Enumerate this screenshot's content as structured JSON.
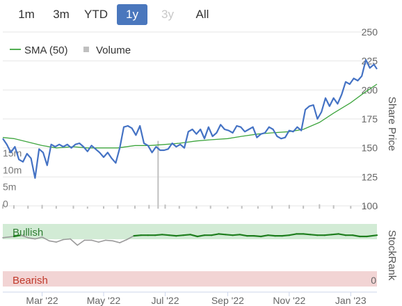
{
  "range_selector": {
    "buttons": [
      {
        "label": "1m",
        "state": "normal"
      },
      {
        "label": "3m",
        "state": "normal"
      },
      {
        "label": "YTD",
        "state": "normal"
      },
      {
        "label": "1y",
        "state": "active"
      },
      {
        "label": "3y",
        "state": "disabled"
      },
      {
        "label": "All",
        "state": "normal"
      }
    ]
  },
  "colors": {
    "price": "#4472c4",
    "sma": "#3ea53e",
    "volume": "#c0c0c0",
    "stockrank_line": "#9a9a9a",
    "stockrank_bullish": "#1e7e1e",
    "bullish_band": "#d2ebd5",
    "bearish_band": "#f2d4d4",
    "bullish_text": "#2e7d32",
    "bearish_text": "#c0392b",
    "active_button": "#4a77bd"
  },
  "chart_data": [
    {
      "type": "line",
      "ylabel": "Share Price",
      "ylim": [
        100,
        250
      ],
      "y_ticks": [
        "250",
        "225",
        "200",
        "175",
        "150",
        "125",
        "100"
      ],
      "volume_ticks": [
        "15m",
        "10m",
        "5m",
        "0"
      ],
      "volume_max": 23000000,
      "x_labels": [
        "Mar '22",
        "May '22",
        "Jul '22",
        "Sep '22",
        "Nov '22",
        "Jan '23"
      ],
      "x_label_dates": [
        "2022-03-01",
        "2022-05-01",
        "2022-07-01",
        "2022-09-01",
        "2022-11-01",
        "2023-01-01"
      ],
      "x_range": [
        "2022-01-21",
        "2023-01-27"
      ],
      "legend": [
        {
          "name": "SMA (50)",
          "marker": "line"
        },
        {
          "name": "Volume",
          "marker": "square"
        }
      ],
      "legend_position": "top-left",
      "series": [
        {
          "name": "Price",
          "x": [
            "2022-01-21",
            "2022-01-25",
            "2022-01-29",
            "2022-02-02",
            "2022-02-06",
            "2022-02-10",
            "2022-02-14",
            "2022-02-18",
            "2022-02-22",
            "2022-02-26",
            "2022-03-02",
            "2022-03-06",
            "2022-03-10",
            "2022-03-14",
            "2022-03-18",
            "2022-03-22",
            "2022-03-26",
            "2022-03-30",
            "2022-04-03",
            "2022-04-07",
            "2022-04-11",
            "2022-04-15",
            "2022-04-19",
            "2022-04-23",
            "2022-04-27",
            "2022-05-01",
            "2022-05-05",
            "2022-05-09",
            "2022-05-13",
            "2022-05-17",
            "2022-05-21",
            "2022-05-25",
            "2022-05-29",
            "2022-06-02",
            "2022-06-06",
            "2022-06-10",
            "2022-06-14",
            "2022-06-18",
            "2022-06-22",
            "2022-06-26",
            "2022-06-30",
            "2022-07-04",
            "2022-07-08",
            "2022-07-12",
            "2022-07-16",
            "2022-07-20",
            "2022-07-24",
            "2022-07-28",
            "2022-08-01",
            "2022-08-05",
            "2022-08-09",
            "2022-08-13",
            "2022-08-17",
            "2022-08-21",
            "2022-08-25",
            "2022-08-29",
            "2022-09-02",
            "2022-09-06",
            "2022-09-10",
            "2022-09-14",
            "2022-09-18",
            "2022-09-22",
            "2022-09-26",
            "2022-09-30",
            "2022-10-04",
            "2022-10-08",
            "2022-10-12",
            "2022-10-16",
            "2022-10-20",
            "2022-10-24",
            "2022-10-28",
            "2022-11-01",
            "2022-11-05",
            "2022-11-09",
            "2022-11-13",
            "2022-11-17",
            "2022-11-21",
            "2022-11-25",
            "2022-11-29",
            "2022-12-03",
            "2022-12-07",
            "2022-12-11",
            "2022-12-15",
            "2022-12-19",
            "2022-12-23",
            "2022-12-27",
            "2022-12-31",
            "2023-01-04",
            "2023-01-08",
            "2023-01-12",
            "2023-01-16",
            "2023-01-20",
            "2023-01-24",
            "2023-01-27"
          ],
          "y": [
            158,
            153,
            146,
            151,
            140,
            138,
            145,
            141,
            124,
            149,
            146,
            135,
            153,
            151,
            153,
            151,
            153,
            150,
            153,
            154,
            151,
            147,
            152,
            149,
            146,
            142,
            146,
            141,
            137,
            150,
            168,
            169,
            167,
            161,
            169,
            154,
            152,
            146,
            151,
            148,
            148,
            149,
            154,
            151,
            153,
            150,
            164,
            166,
            162,
            166,
            158,
            168,
            160,
            163,
            170,
            166,
            165,
            163,
            169,
            168,
            164,
            166,
            168,
            159,
            162,
            163,
            168,
            166,
            160,
            158,
            159,
            165,
            164,
            168,
            165,
            183,
            186,
            187,
            175,
            181,
            193,
            186,
            193,
            188,
            196,
            207,
            205,
            210,
            208,
            212,
            226,
            219,
            222,
            218
          ]
        },
        {
          "name": "SMA (50)",
          "x": [
            "2022-01-21",
            "2022-02-01",
            "2022-02-15",
            "2022-03-01",
            "2022-03-15",
            "2022-04-01",
            "2022-04-15",
            "2022-05-01",
            "2022-05-15",
            "2022-06-01",
            "2022-06-15",
            "2022-07-01",
            "2022-07-15",
            "2022-08-01",
            "2022-08-15",
            "2022-09-01",
            "2022-09-15",
            "2022-10-01",
            "2022-10-15",
            "2022-11-01",
            "2022-11-15",
            "2022-12-01",
            "2022-12-15",
            "2023-01-01",
            "2023-01-15",
            "2023-01-27"
          ],
          "y": [
            159,
            158,
            155,
            152,
            150,
            151,
            150,
            150,
            150,
            152,
            152,
            153,
            154,
            156,
            157,
            158,
            160,
            162,
            163,
            164,
            166,
            172,
            180,
            189,
            198,
            205
          ]
        },
        {
          "name": "Volume",
          "x": [
            "2022-01-21",
            "2022-02-01",
            "2022-02-15",
            "2022-03-01",
            "2022-03-15",
            "2022-04-01",
            "2022-04-15",
            "2022-05-01",
            "2022-05-15",
            "2022-06-01",
            "2022-06-15",
            "2022-06-24",
            "2022-07-01",
            "2022-07-15",
            "2022-08-01",
            "2022-08-15",
            "2022-09-01",
            "2022-09-15",
            "2022-10-01",
            "2022-10-15",
            "2022-11-01",
            "2022-11-15",
            "2022-12-01",
            "2022-12-15",
            "2023-01-01",
            "2023-01-15",
            "2023-01-27"
          ],
          "y": [
            1200000,
            1000000,
            900000,
            1100000,
            800000,
            900000,
            600000,
            700000,
            1000000,
            900000,
            1100000,
            20000000,
            1200000,
            800000,
            700000,
            900000,
            600000,
            800000,
            700000,
            900000,
            1100000,
            900000,
            1300000,
            1000000,
            800000,
            900000,
            700000
          ]
        }
      ]
    },
    {
      "type": "line",
      "ylabel": "StockRank",
      "ylim": [
        0,
        100
      ],
      "y_ticks": [
        "0"
      ],
      "band_labels": [
        "Bullish",
        "Bearish"
      ],
      "series": [
        {
          "name": "StockRank",
          "x": [
            "2022-01-21",
            "2022-02-01",
            "2022-02-08",
            "2022-02-15",
            "2022-02-22",
            "2022-03-01",
            "2022-03-08",
            "2022-03-15",
            "2022-03-22",
            "2022-03-29",
            "2022-04-05",
            "2022-04-12",
            "2022-04-19",
            "2022-04-26",
            "2022-05-03",
            "2022-05-10",
            "2022-05-17",
            "2022-05-24",
            "2022-05-31",
            "2022-06-07",
            "2022-06-14",
            "2022-06-21",
            "2022-06-28",
            "2022-07-05",
            "2022-07-12",
            "2022-07-19",
            "2022-07-26",
            "2022-08-02",
            "2022-08-09",
            "2022-08-16",
            "2022-08-23",
            "2022-08-30",
            "2022-09-06",
            "2022-09-13",
            "2022-09-20",
            "2022-09-27",
            "2022-10-04",
            "2022-10-11",
            "2022-10-18",
            "2022-10-25",
            "2022-11-01",
            "2022-11-08",
            "2022-11-15",
            "2022-11-22",
            "2022-11-29",
            "2022-12-06",
            "2022-12-13",
            "2022-12-20",
            "2022-12-27",
            "2023-01-03",
            "2023-01-10",
            "2023-01-17",
            "2023-01-27"
          ],
          "y": [
            78,
            80,
            82,
            78,
            76,
            79,
            73,
            71,
            75,
            76,
            66,
            74,
            74,
            71,
            74,
            73,
            70,
            75,
            81,
            82,
            82,
            82,
            83,
            82,
            81,
            82,
            83,
            80,
            82,
            82,
            84,
            83,
            82,
            83,
            81,
            81,
            80,
            82,
            81,
            81,
            82,
            84,
            84,
            83,
            82,
            82,
            83,
            84,
            82,
            82,
            80,
            80,
            82
          ]
        }
      ]
    }
  ]
}
